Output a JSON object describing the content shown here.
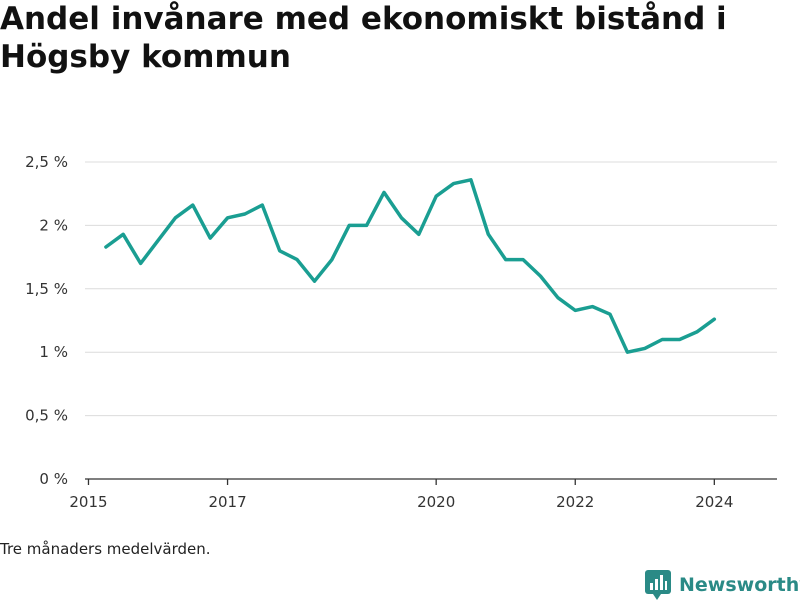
{
  "title": "Andel invånare med ekonomiskt bistånd i Högsby kommun",
  "footnote": "Tre månaders medelvärden.",
  "brand": {
    "name": "Newsworthy",
    "icon": "bar-chart-logo-icon",
    "color": "#2a8a86"
  },
  "chart_data": {
    "type": "line",
    "xlabel": "",
    "ylabel": "",
    "x_ticks": [
      "2015",
      "2017",
      "2020",
      "2022",
      "2024"
    ],
    "y_ticks": [
      "0 %",
      "0,5 %",
      "1 %",
      "1,5 %",
      "2 %",
      "2,5 %"
    ],
    "ylim": [
      0,
      2.5
    ],
    "grid": "horizontal",
    "line_color": "#1a9e92",
    "series": [
      {
        "x": [
          "2015-04",
          "2015-07",
          "2015-10",
          "2016-01",
          "2016-04",
          "2016-07",
          "2016-10",
          "2017-01",
          "2017-04",
          "2017-07",
          "2017-10",
          "2018-01",
          "2018-04",
          "2018-07",
          "2018-10",
          "2019-01",
          "2019-04",
          "2019-07",
          "2019-10",
          "2020-01",
          "2020-04",
          "2020-07",
          "2020-10",
          "2021-01",
          "2021-04",
          "2021-07",
          "2021-10",
          "2022-01",
          "2022-04",
          "2022-07",
          "2022-10",
          "2023-01",
          "2023-04",
          "2023-07",
          "2023-10",
          "2024-01"
        ],
        "values": [
          1.83,
          1.93,
          1.7,
          1.88,
          2.06,
          2.16,
          1.9,
          2.06,
          2.09,
          2.16,
          1.8,
          1.73,
          1.56,
          1.73,
          2.0,
          2.0,
          2.26,
          2.06,
          1.93,
          2.23,
          2.33,
          2.36,
          1.93,
          1.73,
          1.73,
          1.6,
          1.43,
          1.33,
          1.36,
          1.3,
          1.0,
          1.03,
          1.1,
          1.1,
          1.16,
          1.26
        ]
      }
    ]
  }
}
